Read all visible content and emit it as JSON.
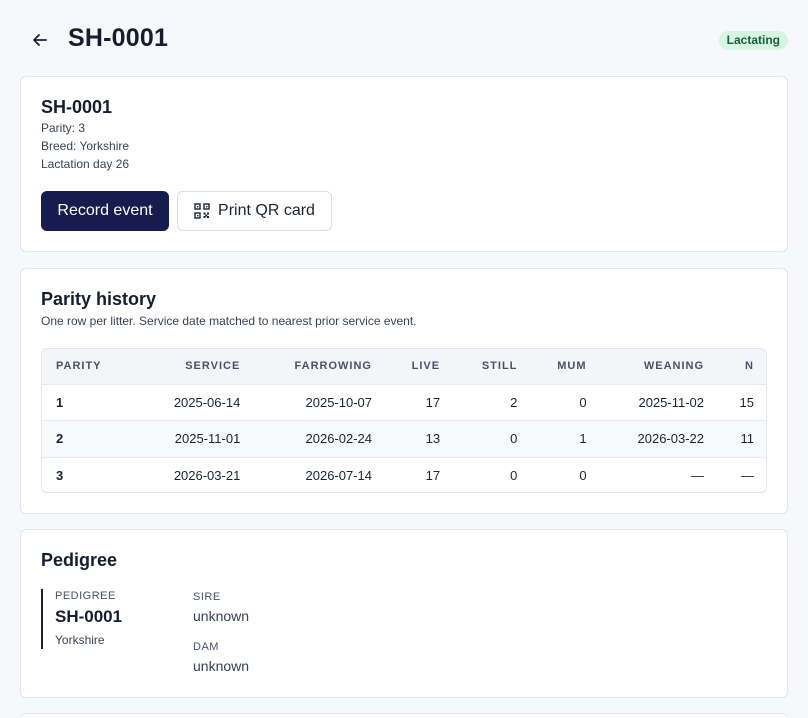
{
  "header": {
    "title": "SH-0001",
    "status": "Lactating",
    "back_icon": "arrow-left-icon"
  },
  "summary": {
    "id": "SH-0001",
    "parity": "Parity: 3",
    "breed": "Breed: Yorkshire",
    "lactation": "Lactation day 26",
    "record_event_label": "Record event",
    "print_qr_label": "Print QR card"
  },
  "parity_history": {
    "title": "Parity history",
    "subtitle": "One row per litter. Service date matched to nearest prior service event.",
    "columns": [
      "PARITY",
      "SERVICE",
      "FARROWING",
      "LIVE",
      "STILL",
      "MUM",
      "WEANING",
      "N"
    ],
    "rows": [
      [
        "1",
        "2025-06-14",
        "2025-10-07",
        "17",
        "2",
        "0",
        "2025-11-02",
        "15"
      ],
      [
        "2",
        "2025-11-01",
        "2026-02-24",
        "13",
        "0",
        "1",
        "2026-03-22",
        "11"
      ],
      [
        "3",
        "2026-03-21",
        "2026-07-14",
        "17",
        "0",
        "0",
        "—",
        "—"
      ]
    ]
  },
  "pedigree": {
    "title": "Pedigree",
    "label": "PEDIGREE",
    "name": "SH-0001",
    "breed": "Yorkshire",
    "sire_label": "SIRE",
    "sire_value": "unknown",
    "dam_label": "DAM",
    "dam_value": "unknown"
  },
  "colors": {
    "primary": "#161d4e",
    "badge_bg": "#d7f5e3",
    "badge_text": "#17603b"
  }
}
